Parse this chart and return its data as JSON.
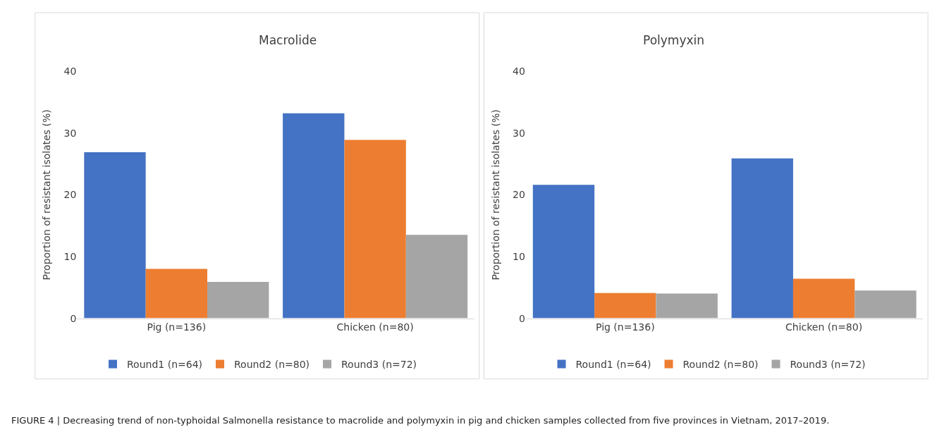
{
  "chart_data": [
    {
      "type": "bar",
      "title": "Macrolide",
      "ylabel": "Proportion of resistant isolates (%)",
      "categories": [
        "Pig (n=136)",
        "Chicken (n=80)"
      ],
      "ylim": [
        0,
        40
      ],
      "yticks": [
        0,
        10,
        20,
        30,
        40
      ],
      "grid": false,
      "legend": "bottom",
      "series": [
        {
          "name": "Round1 (n=64)",
          "color": "#4472c4",
          "values": [
            26.9,
            33.2
          ]
        },
        {
          "name": "Round2 (n=80)",
          "color": "#ed7d31",
          "values": [
            8.0,
            28.9
          ]
        },
        {
          "name": "Round3 (n=72)",
          "color": "#a5a5a5",
          "values": [
            5.9,
            13.5
          ]
        }
      ],
      "annotations": [
        "FIGURE 4 | Decreasing trend of non-typhoidal Salmonella resistance to macrolide and polymyxin in pig and chicken samples collected from five provinces in Vietnam, 2017–2019."
      ]
    },
    {
      "type": "bar",
      "title": "Polymyxin",
      "ylabel": "Proportion of resistant isolates (%)",
      "categories": [
        "Pig (n=136)",
        "Chicken (n=80)"
      ],
      "ylim": [
        0,
        40
      ],
      "yticks": [
        0,
        10,
        20,
        30,
        40
      ],
      "grid": false,
      "legend": "bottom",
      "series": [
        {
          "name": "Round1 (n=64)",
          "color": "#4472c4",
          "values": [
            21.6,
            25.9
          ]
        },
        {
          "name": "Round2 (n=80)",
          "color": "#ed7d31",
          "values": [
            4.1,
            6.4
          ]
        },
        {
          "name": "Round3 (n=72)",
          "color": "#a5a5a5",
          "values": [
            4.0,
            4.5
          ]
        }
      ]
    }
  ]
}
